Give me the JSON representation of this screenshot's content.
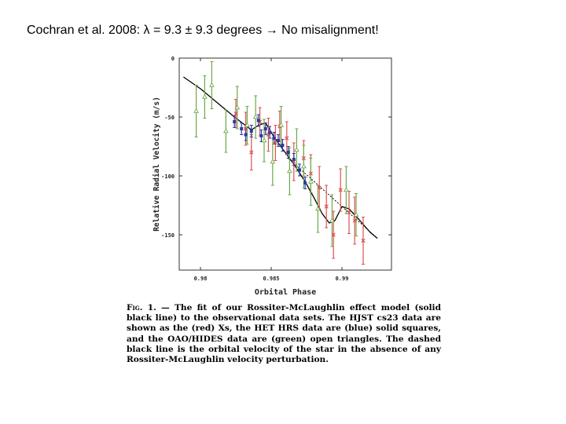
{
  "slide": {
    "title": "Cochran et al. 2008: λ = 9.3 ± 9.3 degrees → No misalignment!"
  },
  "figure": {
    "caption_label": "Fig. 1.",
    "caption_text": "— The fit of our Rossiter-McLaughlin effect model (solid black line) to the observational data sets. The HJST cs23 data are shown as the (red) Xs, the HET HRS data are (blue) solid squares, and the OAO/HIDES data are (green) open triangles. The dashed black line is the orbital velocity of the star in the absence of any Rossiter-McLaughlin velocity perturbation."
  },
  "chart_data": {
    "type": "scatter",
    "title": "",
    "xlabel": "Orbital Phase",
    "ylabel": "Relative Radial Velocity (m/s)",
    "xlim": [
      0.9785,
      0.9935
    ],
    "ylim": [
      -180,
      0
    ],
    "x_ticks": [
      0.98,
      0.985,
      0.99
    ],
    "x_tick_labels": [
      "0.98",
      "0.985",
      "0.99"
    ],
    "y_ticks": [
      0,
      -50,
      -100,
      -150
    ],
    "y_tick_labels": [
      "0",
      "-50",
      "-100",
      "-150"
    ],
    "grid": false,
    "colors": {
      "hjst": "#e05050",
      "het": "#2a3aa0",
      "oao": "#6aaa4a",
      "model": "#000000"
    },
    "series": [
      {
        "key": "hjst",
        "marker": "x",
        "points": [
          {
            "x": 0.9825,
            "y": -47,
            "err": 12
          },
          {
            "x": 0.9832,
            "y": -60,
            "err": 14
          },
          {
            "x": 0.9836,
            "y": -80,
            "err": 15
          },
          {
            "x": 0.9842,
            "y": -54,
            "err": 12
          },
          {
            "x": 0.9848,
            "y": -65,
            "err": 14
          },
          {
            "x": 0.9853,
            "y": -72,
            "err": 15
          },
          {
            "x": 0.9856,
            "y": -58,
            "err": 13
          },
          {
            "x": 0.9861,
            "y": -68,
            "err": 14
          },
          {
            "x": 0.9866,
            "y": -88,
            "err": 16
          },
          {
            "x": 0.9873,
            "y": -85,
            "err": 15
          },
          {
            "x": 0.9878,
            "y": -98,
            "err": 16
          },
          {
            "x": 0.9884,
            "y": -110,
            "err": 18
          },
          {
            "x": 0.9889,
            "y": -126,
            "err": 18
          },
          {
            "x": 0.9894,
            "y": -150,
            "err": 20
          },
          {
            "x": 0.9899,
            "y": -112,
            "err": 18
          },
          {
            "x": 0.9905,
            "y": -131,
            "err": 18
          },
          {
            "x": 0.9909,
            "y": -138,
            "err": 20
          },
          {
            "x": 0.9915,
            "y": -155,
            "err": 20
          }
        ]
      },
      {
        "key": "het",
        "marker": "square",
        "points": [
          {
            "x": 0.9824,
            "y": -54,
            "err": 5
          },
          {
            "x": 0.9829,
            "y": -60,
            "err": 5
          },
          {
            "x": 0.9832,
            "y": -65,
            "err": 5
          },
          {
            "x": 0.9836,
            "y": -62,
            "err": 5
          },
          {
            "x": 0.9841,
            "y": -53,
            "err": 5
          },
          {
            "x": 0.9843,
            "y": -66,
            "err": 5
          },
          {
            "x": 0.9846,
            "y": -60,
            "err": 5
          },
          {
            "x": 0.9849,
            "y": -63,
            "err": 5
          },
          {
            "x": 0.9852,
            "y": -68,
            "err": 5
          },
          {
            "x": 0.9855,
            "y": -70,
            "err": 5
          },
          {
            "x": 0.9858,
            "y": -74,
            "err": 5
          },
          {
            "x": 0.9862,
            "y": -80,
            "err": 5
          },
          {
            "x": 0.9866,
            "y": -86,
            "err": 5
          },
          {
            "x": 0.987,
            "y": -95,
            "err": 5
          },
          {
            "x": 0.9874,
            "y": -106,
            "err": 5
          }
        ]
      },
      {
        "key": "oao",
        "marker": "triangle",
        "points": [
          {
            "x": 0.9797,
            "y": -45,
            "err": 22
          },
          {
            "x": 0.9803,
            "y": -33,
            "err": 18
          },
          {
            "x": 0.9808,
            "y": -23,
            "err": 20
          },
          {
            "x": 0.9818,
            "y": -62,
            "err": 18
          },
          {
            "x": 0.9826,
            "y": -42,
            "err": 18
          },
          {
            "x": 0.9833,
            "y": -57,
            "err": 16
          },
          {
            "x": 0.9839,
            "y": -50,
            "err": 18
          },
          {
            "x": 0.9845,
            "y": -70,
            "err": 18
          },
          {
            "x": 0.9851,
            "y": -88,
            "err": 20
          },
          {
            "x": 0.9857,
            "y": -57,
            "err": 16
          },
          {
            "x": 0.9863,
            "y": -96,
            "err": 20
          },
          {
            "x": 0.9868,
            "y": -78,
            "err": 18
          },
          {
            "x": 0.9873,
            "y": -92,
            "err": 18
          },
          {
            "x": 0.9878,
            "y": -105,
            "err": 20
          },
          {
            "x": 0.9883,
            "y": -128,
            "err": 20
          },
          {
            "x": 0.9893,
            "y": -138,
            "err": 22
          },
          {
            "x": 0.9903,
            "y": -112,
            "err": 20
          },
          {
            "x": 0.991,
            "y": -133,
            "err": 18
          }
        ]
      }
    ],
    "model_curve": [
      {
        "x": 0.9788,
        "y": -16
      },
      {
        "x": 0.98,
        "y": -26
      },
      {
        "x": 0.9812,
        "y": -38
      },
      {
        "x": 0.9824,
        "y": -50
      },
      {
        "x": 0.9836,
        "y": -61
      },
      {
        "x": 0.9841,
        "y": -57
      },
      {
        "x": 0.9846,
        "y": -55
      },
      {
        "x": 0.9852,
        "y": -67
      },
      {
        "x": 0.9858,
        "y": -77
      },
      {
        "x": 0.9866,
        "y": -90
      },
      {
        "x": 0.9874,
        "y": -105
      },
      {
        "x": 0.988,
        "y": -118
      },
      {
        "x": 0.9886,
        "y": -132
      },
      {
        "x": 0.9891,
        "y": -140
      },
      {
        "x": 0.9895,
        "y": -138
      },
      {
        "x": 0.99,
        "y": -126
      },
      {
        "x": 0.9905,
        "y": -128
      },
      {
        "x": 0.9912,
        "y": -137
      },
      {
        "x": 0.992,
        "y": -148
      },
      {
        "x": 0.9925,
        "y": -153
      }
    ],
    "orbital_curve": [
      {
        "x": 0.9862,
        "y": -85
      },
      {
        "x": 0.9925,
        "y": -153
      }
    ]
  }
}
